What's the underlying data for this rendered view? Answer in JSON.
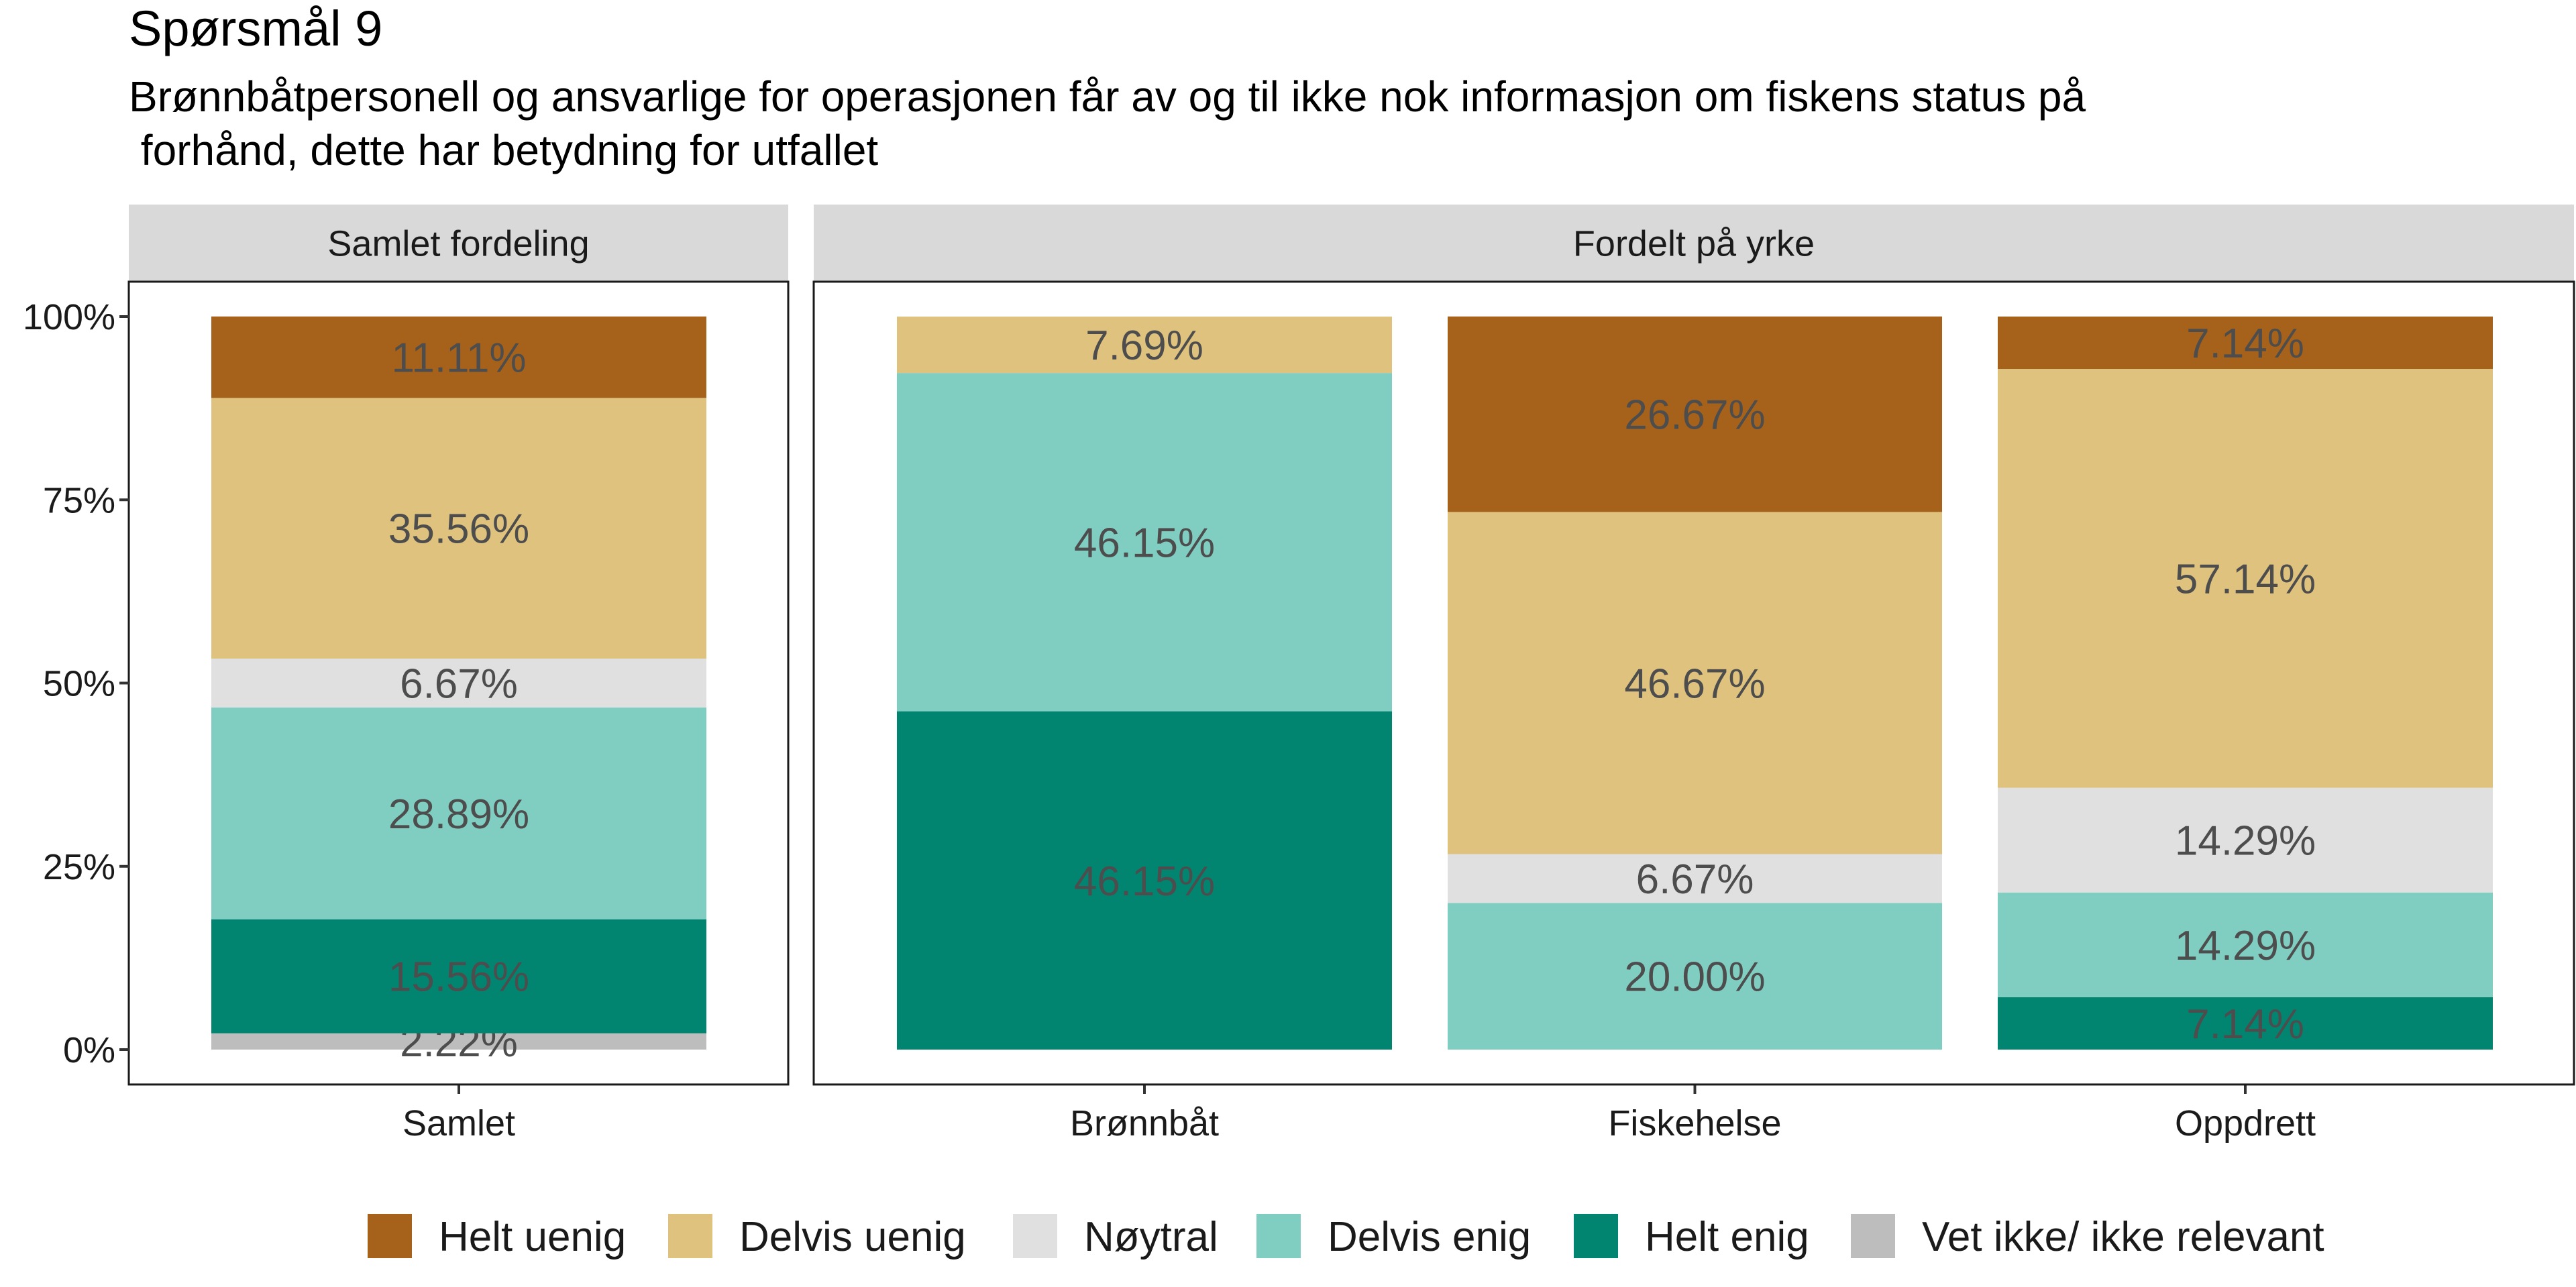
{
  "chart_data": {
    "type": "bar",
    "stacked": true,
    "title": "Spørsmål 9",
    "subtitle": "Brønnbåtpersonell og ansvarlige for operasjonen får av og til ikke nok informasjon om fiskens status på\n forhånd, dette har betydning for utfallet",
    "xlabel": "",
    "ylabel": "",
    "ylim": [
      0,
      100
    ],
    "yticks": [
      "0%",
      "25%",
      "50%",
      "75%",
      "100%"
    ],
    "grid": false,
    "legend_position": "bottom",
    "series": [
      {
        "name": "Helt uenig",
        "color": "#A6611A"
      },
      {
        "name": "Delvis uenig",
        "color": "#DFC27D"
      },
      {
        "name": "Nøytral",
        "color": "#E0E0E0"
      },
      {
        "name": "Delvis enig",
        "color": "#80CDC1"
      },
      {
        "name": "Helt enig",
        "color": "#018571"
      },
      {
        "name": "Vet ikke/ ikke relevant",
        "color": "#BDBDBD"
      }
    ],
    "panels": [
      {
        "title": "Samlet fordeling",
        "categories": [
          {
            "name": "Samlet",
            "values": [
              11.11,
              35.56,
              6.67,
              28.89,
              15.56,
              2.22
            ],
            "labels": [
              "11.11%",
              "35.56%",
              "6.67%",
              "28.89%",
              "15.56%",
              "2.22%"
            ]
          }
        ]
      },
      {
        "title": "Fordelt på yrke",
        "categories": [
          {
            "name": "Brønnbåt",
            "values": [
              0,
              7.69,
              0,
              46.15,
              46.15,
              0
            ],
            "labels": [
              "",
              "7.69%",
              "",
              "46.15%",
              "46.15%",
              ""
            ]
          },
          {
            "name": "Fiskehelse",
            "values": [
              26.67,
              46.67,
              6.67,
              20.0,
              0,
              0
            ],
            "labels": [
              "26.67%",
              "46.67%",
              "6.67%",
              "20.00%",
              "",
              ""
            ]
          },
          {
            "name": "Oppdrett",
            "values": [
              7.14,
              57.14,
              14.29,
              14.29,
              7.14,
              0
            ],
            "labels": [
              "7.14%",
              "57.14%",
              "14.29%",
              "14.29%",
              "7.14%",
              ""
            ]
          }
        ]
      }
    ]
  }
}
